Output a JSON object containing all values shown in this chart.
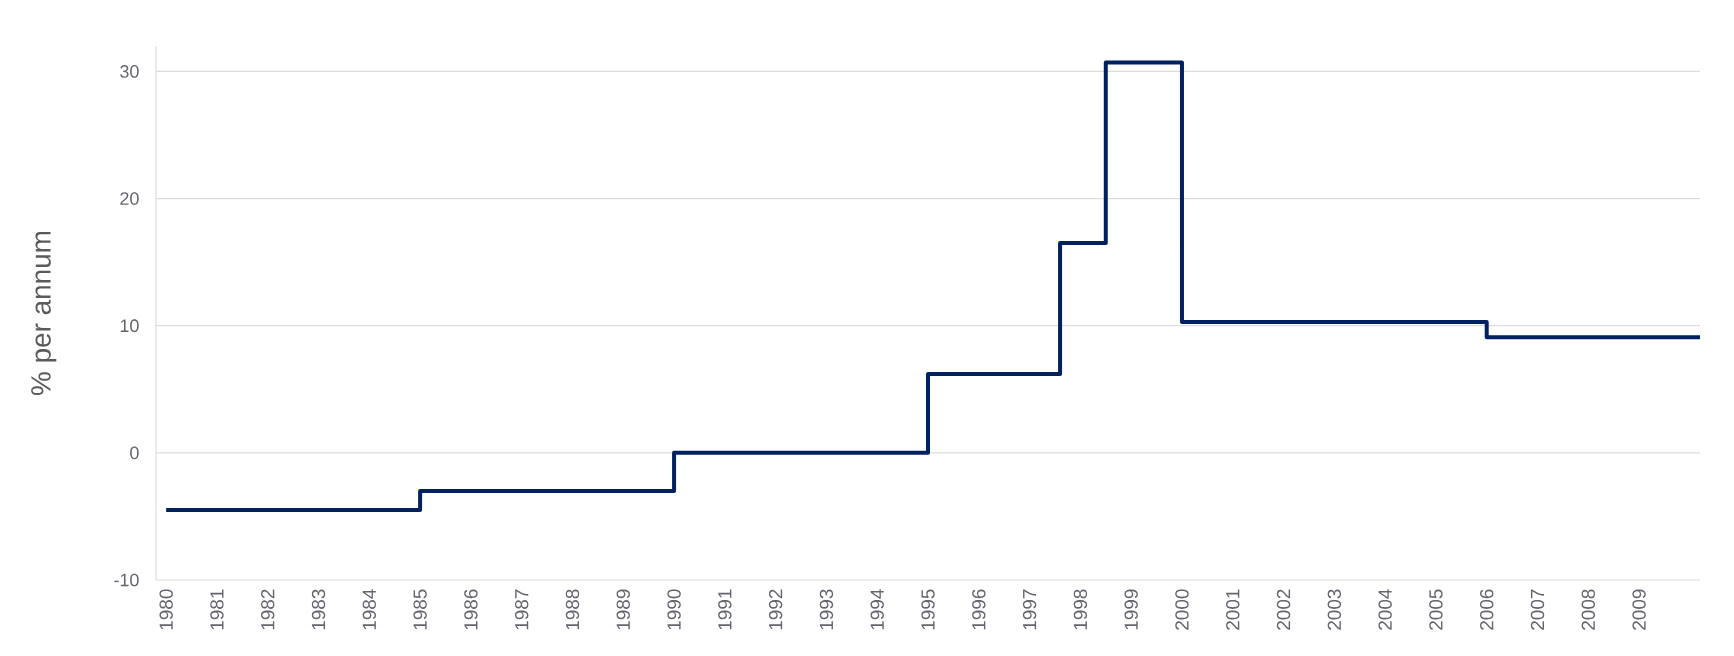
{
  "chart_data": {
    "type": "step",
    "ylabel": "% per annum",
    "color": "#002060",
    "x": [
      1980,
      1985,
      1990,
      1995,
      1997.6,
      1998.5,
      2000,
      2006,
      2010.2
    ],
    "values": [
      -4.5,
      -3,
      0,
      6.2,
      16.5,
      30.7,
      10.3,
      9.1,
      9.1
    ],
    "xlim": [
      1979.8,
      2010.2
    ],
    "ylim": [
      -10,
      32
    ],
    "xticks": [
      1980,
      1981,
      1982,
      1983,
      1984,
      1985,
      1986,
      1987,
      1988,
      1989,
      1990,
      1991,
      1992,
      1993,
      1994,
      1995,
      1996,
      1997,
      1998,
      1999,
      2000,
      2001,
      2002,
      2003,
      2004,
      2005,
      2006,
      2007,
      2008,
      2009
    ],
    "yticks": [
      -10,
      0,
      10,
      20,
      30
    ],
    "grid": "y"
  }
}
